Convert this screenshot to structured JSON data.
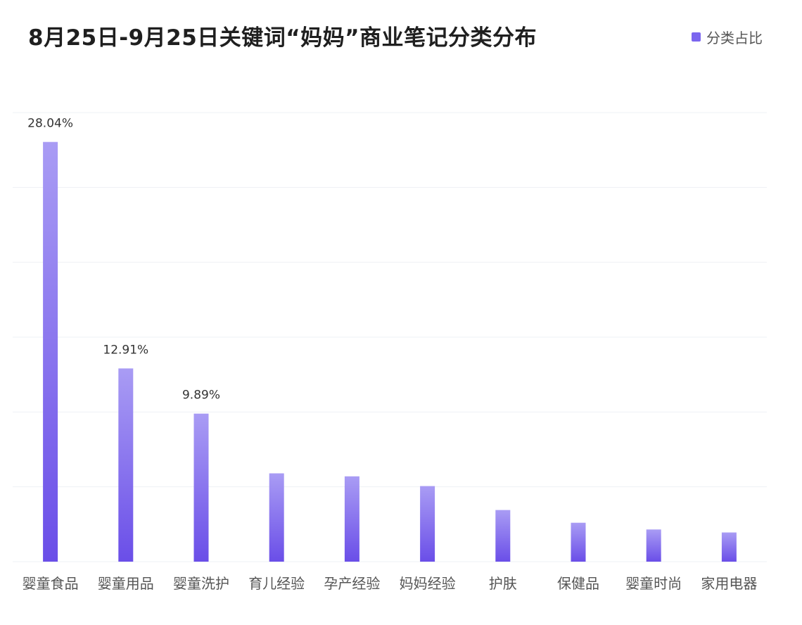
{
  "chart_data": {
    "type": "bar",
    "title": "8月25日-9月25日关键词“妈妈”商业笔记分类分布",
    "xlabel": "",
    "ylabel": "",
    "categories": [
      "婴童食品",
      "婴童用品",
      "婴童洗护",
      "育儿经验",
      "孕产经验",
      "妈妈经验",
      "护肤",
      "保健品",
      "婴童时尚",
      "家用电器"
    ],
    "series": [
      {
        "name": "分类占比",
        "values": [
          28.04,
          12.91,
          9.89,
          5.9,
          5.7,
          5.05,
          3.45,
          2.6,
          2.15,
          1.95
        ],
        "labels": [
          "28.04%",
          "12.91%",
          "9.89%",
          "",
          "",
          "",
          "",
          "",
          "",
          ""
        ]
      }
    ],
    "ylim": [
      0,
      30
    ],
    "grid": true,
    "legend": "top-right",
    "colors": {
      "bar_top": "#a99cf4",
      "bar_bottom": "#6a4ee8",
      "legend": "#7b66ef",
      "grid": "#eef0f5"
    }
  }
}
